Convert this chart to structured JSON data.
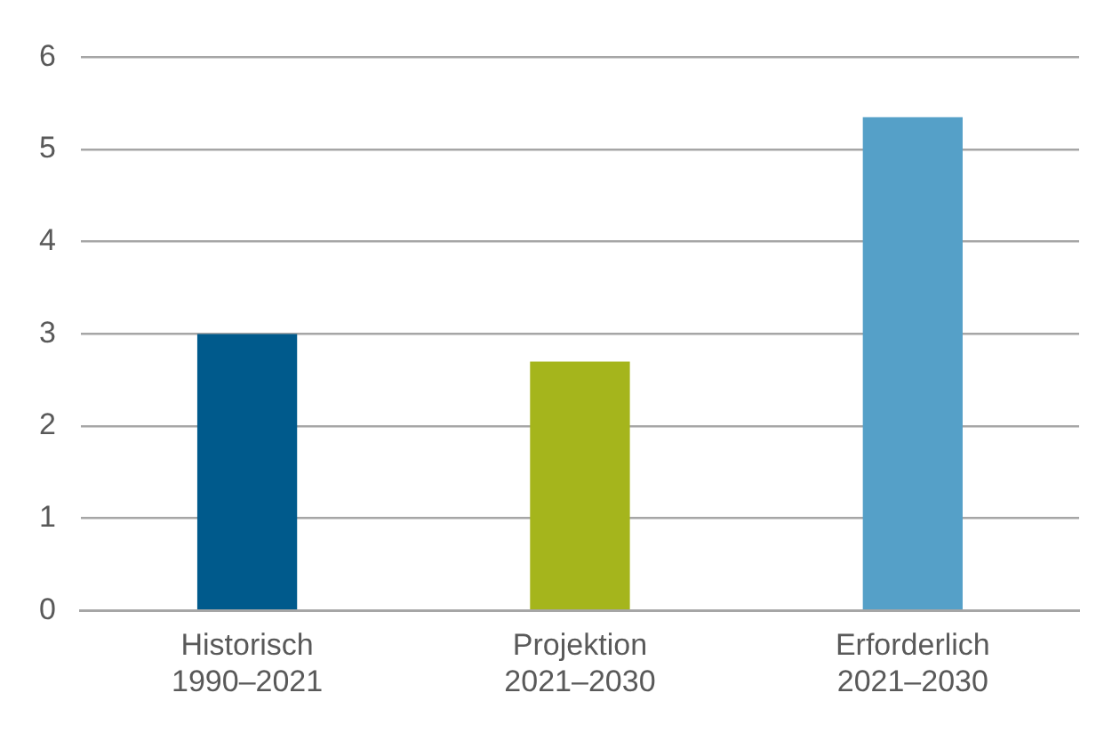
{
  "chart_data": {
    "type": "bar",
    "categories": [
      "Historisch\n1990–2021",
      "Projektion\n2021–2030",
      "Erforderlich\n2021–2030"
    ],
    "values": [
      3.0,
      2.7,
      5.35
    ],
    "colors": [
      "#005a8c",
      "#a5b51c",
      "#55a0c8"
    ],
    "ylim": [
      0,
      6
    ],
    "yticks": [
      0,
      1,
      2,
      3,
      4,
      5,
      6
    ],
    "grid": "y",
    "legend": false
  }
}
